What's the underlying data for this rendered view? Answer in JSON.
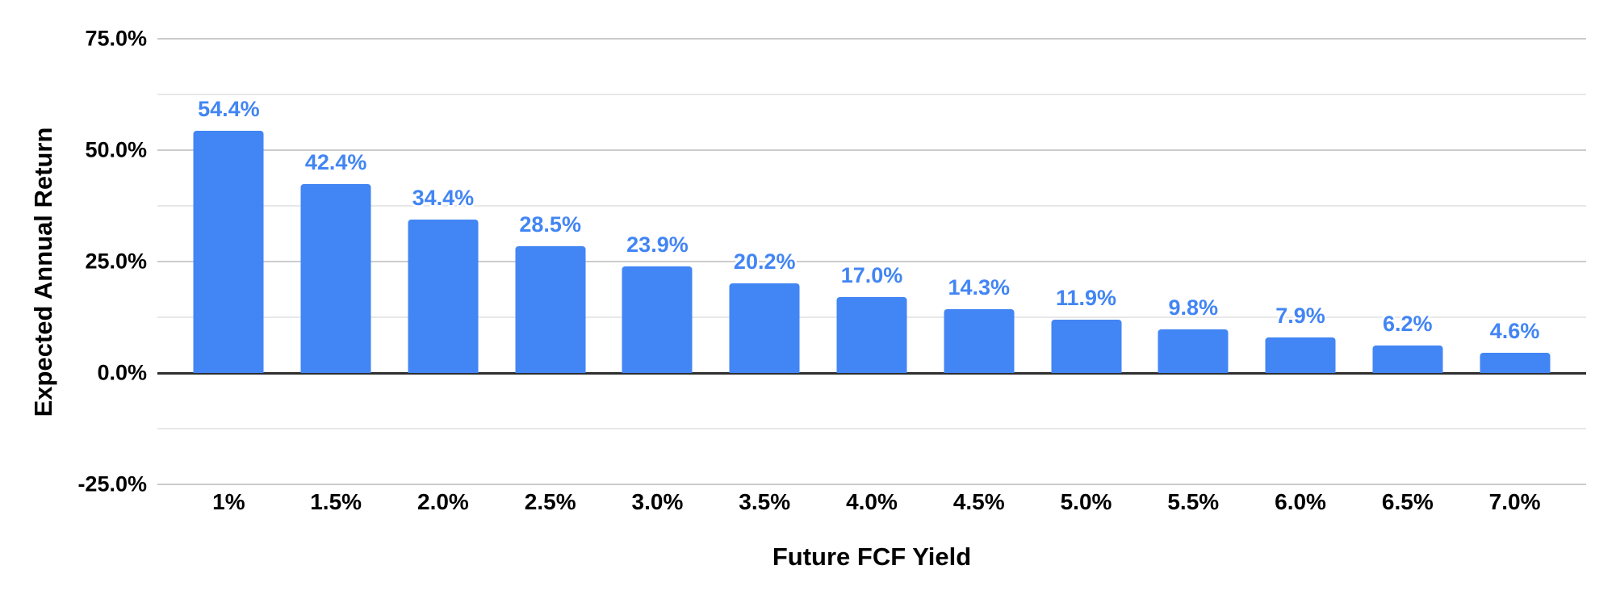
{
  "chart_data": {
    "type": "bar",
    "title": "",
    "xlabel": "Future FCF Yield",
    "ylabel": "Expected Annual Return",
    "categories": [
      "1%",
      "1.5%",
      "2.0%",
      "2.5%",
      "3.0%",
      "3.5%",
      "4.0%",
      "4.5%",
      "5.0%",
      "5.5%",
      "6.0%",
      "6.5%",
      "7.0%"
    ],
    "values": [
      54.4,
      42.4,
      34.4,
      28.5,
      23.9,
      20.2,
      17.0,
      14.3,
      11.9,
      9.8,
      7.9,
      6.2,
      4.6
    ],
    "data_labels": [
      "54.4%",
      "42.4%",
      "34.4%",
      "28.5%",
      "23.9%",
      "20.2%",
      "17.0%",
      "14.3%",
      "11.9%",
      "9.8%",
      "7.9%",
      "6.2%",
      "4.6%"
    ],
    "ylim": [
      -25,
      75
    ],
    "y_major_ticks": [
      {
        "value": 75,
        "label": "75.0%"
      },
      {
        "value": 50,
        "label": "50.0%"
      },
      {
        "value": 25,
        "label": "25.0%"
      },
      {
        "value": 0,
        "label": "0.0%"
      },
      {
        "value": -25,
        "label": "-25.0%"
      }
    ],
    "y_minor_ticks": [
      62.5,
      37.5,
      12.5,
      -12.5
    ],
    "grid": true,
    "legend": "none",
    "colors": {
      "bar": "#4285f4",
      "data_label": "#4285f4",
      "major_grid": "#cbcbcb",
      "minor_grid": "#e8e8e8",
      "zero_line": "#2e2e2e",
      "tick_text": "#000000"
    }
  }
}
